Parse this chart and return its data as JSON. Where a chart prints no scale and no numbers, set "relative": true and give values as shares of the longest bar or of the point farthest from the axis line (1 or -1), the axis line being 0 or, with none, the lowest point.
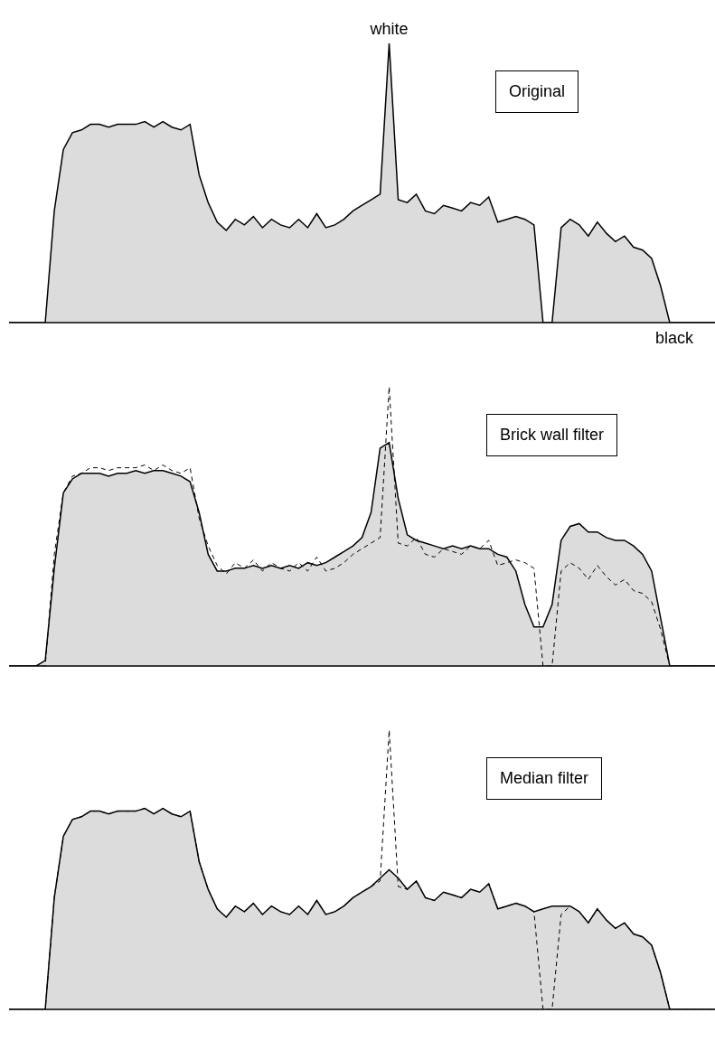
{
  "chart_data": [
    {
      "type": "area",
      "relative": true,
      "title": "Original",
      "annotations": [
        "white",
        "black"
      ],
      "categories": [
        null,
        null,
        null,
        null,
        null,
        null,
        null,
        null,
        null,
        null,
        null,
        null,
        null,
        null,
        null,
        null,
        null,
        null,
        null,
        null,
        null,
        null,
        null,
        null,
        null,
        null,
        null,
        null,
        null,
        null,
        null,
        null,
        null,
        null,
        null,
        null,
        null,
        null,
        null,
        null,
        null,
        null,
        null,
        null,
        null,
        null,
        null,
        null,
        null,
        null,
        null,
        null,
        null,
        null,
        null,
        null,
        null,
        null,
        null,
        null,
        null,
        null,
        null,
        null,
        null,
        null,
        null,
        null,
        null,
        null,
        null,
        null,
        null,
        null,
        null,
        null,
        null,
        null,
        null
      ],
      "series": [
        {
          "color": "#dcdcdc",
          "values": [
            0,
            0,
            0,
            0,
            0,
            0.4,
            0.62,
            0.68,
            0.69,
            0.71,
            0.71,
            0.7,
            0.71,
            0.71,
            0.71,
            0.72,
            0.7,
            0.72,
            0.7,
            0.69,
            0.71,
            0.53,
            0.43,
            0.36,
            0.33,
            0.37,
            0.35,
            0.38,
            0.34,
            0.37,
            0.35,
            0.34,
            0.37,
            0.34,
            0.39,
            0.34,
            0.35,
            0.37,
            0.4,
            0.42,
            0.44,
            0.46,
            1,
            0.44,
            0.43,
            0.46,
            0.4,
            0.39,
            0.42,
            0.41,
            0.4,
            0.43,
            0.42,
            0.45,
            0.36,
            0.37,
            0.38,
            0.37,
            0.35,
            0,
            0,
            0.34,
            0.37,
            0.35,
            0.31,
            0.36,
            0.32,
            0.29,
            0.31,
            0.27,
            0.26,
            0.23,
            0.13,
            0,
            0,
            0,
            0,
            0,
            0
          ]
        }
      ]
    },
    {
      "type": "area",
      "relative": true,
      "title": "Brick wall filter",
      "categories": [
        null,
        null,
        null,
        null,
        null,
        null,
        null,
        null,
        null,
        null,
        null,
        null,
        null,
        null,
        null,
        null,
        null,
        null,
        null,
        null,
        null,
        null,
        null,
        null,
        null,
        null,
        null,
        null,
        null,
        null,
        null,
        null,
        null,
        null,
        null,
        null,
        null,
        null,
        null,
        null,
        null,
        null,
        null,
        null,
        null,
        null,
        null,
        null,
        null,
        null,
        null,
        null,
        null,
        null,
        null,
        null,
        null,
        null,
        null,
        null,
        null,
        null,
        null,
        null,
        null,
        null,
        null,
        null,
        null,
        null,
        null,
        null,
        null,
        null,
        null,
        null,
        null,
        null,
        null
      ],
      "series": [
        {
          "color": "#dcdcdc",
          "values": [
            0,
            0,
            0,
            0,
            0.02,
            0.35,
            0.62,
            0.67,
            0.69,
            0.69,
            0.69,
            0.68,
            0.69,
            0.69,
            0.7,
            0.69,
            0.7,
            0.7,
            0.69,
            0.68,
            0.66,
            0.55,
            0.4,
            0.34,
            0.34,
            0.35,
            0.35,
            0.36,
            0.35,
            0.36,
            0.35,
            0.36,
            0.35,
            0.37,
            0.36,
            0.37,
            0.39,
            0.41,
            0.43,
            0.46,
            0.55,
            0.78,
            0.8,
            0.6,
            0.47,
            0.45,
            0.44,
            0.43,
            0.42,
            0.43,
            0.42,
            0.43,
            0.42,
            0.42,
            0.4,
            0.39,
            0.34,
            0.22,
            0.14,
            0.14,
            0.22,
            0.45,
            0.5,
            0.51,
            0.48,
            0.48,
            0.46,
            0.45,
            0.45,
            0.43,
            0.4,
            0.34,
            0.17,
            0,
            0,
            0,
            0,
            0,
            0
          ]
        },
        {
          "type": "line",
          "line_style": "dashed",
          "color": "#000000",
          "values": [
            0,
            0,
            0,
            0,
            0,
            0.4,
            0.62,
            0.68,
            0.69,
            0.71,
            0.71,
            0.7,
            0.71,
            0.71,
            0.71,
            0.72,
            0.7,
            0.72,
            0.7,
            0.69,
            0.71,
            0.53,
            0.43,
            0.36,
            0.33,
            0.37,
            0.35,
            0.38,
            0.34,
            0.37,
            0.35,
            0.34,
            0.37,
            0.34,
            0.39,
            0.34,
            0.35,
            0.37,
            0.4,
            0.42,
            0.44,
            0.46,
            1,
            0.44,
            0.43,
            0.46,
            0.4,
            0.39,
            0.42,
            0.41,
            0.4,
            0.43,
            0.42,
            0.45,
            0.36,
            0.37,
            0.38,
            0.37,
            0.35,
            0,
            0,
            0.34,
            0.37,
            0.35,
            0.31,
            0.36,
            0.32,
            0.29,
            0.31,
            0.27,
            0.26,
            0.23,
            0.13,
            0,
            0,
            0,
            0,
            0,
            0
          ]
        }
      ]
    },
    {
      "type": "area",
      "relative": true,
      "title": "Median filter",
      "categories": [
        null,
        null,
        null,
        null,
        null,
        null,
        null,
        null,
        null,
        null,
        null,
        null,
        null,
        null,
        null,
        null,
        null,
        null,
        null,
        null,
        null,
        null,
        null,
        null,
        null,
        null,
        null,
        null,
        null,
        null,
        null,
        null,
        null,
        null,
        null,
        null,
        null,
        null,
        null,
        null,
        null,
        null,
        null,
        null,
        null,
        null,
        null,
        null,
        null,
        null,
        null,
        null,
        null,
        null,
        null,
        null,
        null,
        null,
        null,
        null,
        null,
        null,
        null,
        null,
        null,
        null,
        null,
        null,
        null,
        null,
        null,
        null,
        null,
        null,
        null,
        null,
        null,
        null,
        null
      ],
      "series": [
        {
          "color": "#dcdcdc",
          "values": [
            0,
            0,
            0,
            0,
            0,
            0.4,
            0.62,
            0.68,
            0.69,
            0.71,
            0.71,
            0.7,
            0.71,
            0.71,
            0.71,
            0.72,
            0.7,
            0.72,
            0.7,
            0.69,
            0.71,
            0.53,
            0.43,
            0.36,
            0.33,
            0.37,
            0.35,
            0.38,
            0.34,
            0.37,
            0.35,
            0.34,
            0.37,
            0.34,
            0.39,
            0.34,
            0.35,
            0.37,
            0.4,
            0.42,
            0.44,
            0.47,
            0.5,
            0.47,
            0.43,
            0.46,
            0.4,
            0.39,
            0.42,
            0.41,
            0.4,
            0.43,
            0.42,
            0.45,
            0.36,
            0.37,
            0.38,
            0.37,
            0.35,
            0.36,
            0.37,
            0.37,
            0.37,
            0.35,
            0.31,
            0.36,
            0.32,
            0.29,
            0.31,
            0.27,
            0.26,
            0.23,
            0.13,
            0,
            0,
            0,
            0,
            0,
            0
          ]
        },
        {
          "type": "line",
          "line_style": "dashed",
          "color": "#000000",
          "values": [
            0,
            0,
            0,
            0,
            0,
            0.4,
            0.62,
            0.68,
            0.69,
            0.71,
            0.71,
            0.7,
            0.71,
            0.71,
            0.71,
            0.72,
            0.7,
            0.72,
            0.7,
            0.69,
            0.71,
            0.53,
            0.43,
            0.36,
            0.33,
            0.37,
            0.35,
            0.38,
            0.34,
            0.37,
            0.35,
            0.34,
            0.37,
            0.34,
            0.39,
            0.34,
            0.35,
            0.37,
            0.4,
            0.42,
            0.44,
            0.46,
            1,
            0.44,
            0.43,
            0.46,
            0.4,
            0.39,
            0.42,
            0.41,
            0.4,
            0.43,
            0.42,
            0.45,
            0.36,
            0.37,
            0.38,
            0.37,
            0.35,
            0,
            0,
            0.34,
            0.37,
            0.35,
            0.31,
            0.36,
            0.32,
            0.29,
            0.31,
            0.27,
            0.26,
            0.23,
            0.13,
            0,
            0,
            0,
            0,
            0,
            0
          ]
        }
      ]
    }
  ]
}
